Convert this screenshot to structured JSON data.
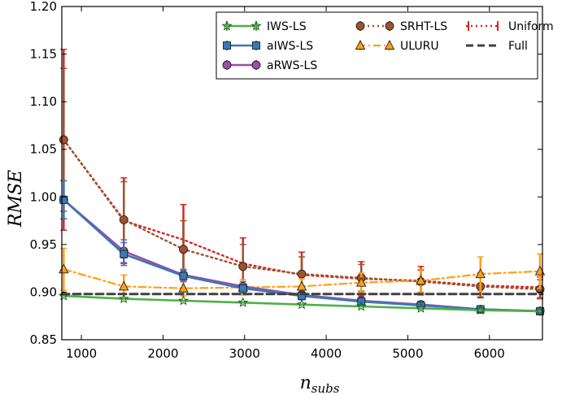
{
  "chart_data": {
    "type": "line",
    "title": "",
    "xlabel": "n_subs",
    "xlabel_main": "n",
    "xlabel_sub": "subs",
    "ylabel": "RMSE",
    "xlim": [
      760,
      6650
    ],
    "ylim": [
      0.85,
      1.2
    ],
    "xticks": [
      1000,
      2000,
      3000,
      4000,
      5000,
      6000
    ],
    "yticks": [
      0.85,
      0.9,
      0.95,
      1.0,
      1.05,
      1.1,
      1.15,
      1.2
    ],
    "x": [
      783,
      1520,
      2250,
      2980,
      3700,
      4430,
      5160,
      5890,
      6620
    ],
    "legend_position": "upper right",
    "series": [
      {
        "name": "Uniform",
        "color": "#d62728",
        "marker": "none",
        "linestyle": "dotted",
        "values": [
          1.06,
          0.975,
          0.955,
          0.93,
          0.918,
          0.914,
          0.912,
          0.907,
          0.905
        ],
        "errors": [
          0.095,
          0.045,
          0.037,
          0.027,
          0.024,
          0.018,
          0.015,
          0.013,
          0.011
        ]
      },
      {
        "name": "SRHT-LS",
        "color": "#a0522d",
        "marker": "circle",
        "linestyle": "dotted",
        "values": [
          1.06,
          0.976,
          0.945,
          0.927,
          0.919,
          0.915,
          0.911,
          0.906,
          0.903
        ],
        "errors": [
          0.075,
          0.04,
          0.03,
          0.023,
          0.018,
          0.014,
          0.012,
          0.011,
          0.01
        ]
      },
      {
        "name": "ULURU",
        "color": "#ff9f1a",
        "marker": "triangle",
        "linestyle": "dashdot",
        "values": [
          0.924,
          0.906,
          0.904,
          0.905,
          0.906,
          0.91,
          0.912,
          0.919,
          0.922
        ],
        "errors": [
          0.022,
          0.012,
          0.008,
          0.008,
          0.008,
          0.01,
          0.012,
          0.018,
          0.018
        ]
      },
      {
        "name": "aRWS-LS",
        "color": "#9b4fa5",
        "marker": "circle",
        "linestyle": "solid",
        "values": [
          0.997,
          0.943,
          0.918,
          0.906,
          0.897,
          0.891,
          0.887,
          0.882,
          0.88
        ],
        "errors": [
          0.02,
          0.012,
          0.006,
          0.005,
          0.004,
          0.003,
          0.003,
          0.002,
          0.002
        ]
      },
      {
        "name": "aIWS-LS",
        "color": "#3a78b8",
        "marker": "square",
        "linestyle": "solid",
        "values": [
          0.997,
          0.94,
          0.917,
          0.904,
          0.896,
          0.89,
          0.886,
          0.882,
          0.88
        ],
        "errors": [
          0.02,
          0.012,
          0.006,
          0.005,
          0.004,
          0.003,
          0.003,
          0.002,
          0.002
        ]
      },
      {
        "name": "IWS-LS",
        "color": "#4db04a",
        "marker": "star",
        "linestyle": "solid",
        "values": [
          0.896,
          0.893,
          0.891,
          0.889,
          0.887,
          0.885,
          0.883,
          0.881,
          0.88
        ],
        "errors": [
          0.0,
          0.0,
          0.0,
          0.0,
          0.0,
          0.0,
          0.0,
          0.0,
          0.0
        ]
      },
      {
        "name": "Full",
        "color": "#404040",
        "marker": "none",
        "linestyle": "dashed",
        "values": [
          0.898,
          0.898,
          0.898,
          0.898,
          0.898,
          0.898,
          0.898,
          0.898,
          0.898
        ],
        "errors": [
          0.0,
          0.0,
          0.0,
          0.0,
          0.0,
          0.0,
          0.0,
          0.0,
          0.0
        ]
      }
    ],
    "legend_order": [
      "IWS-LS",
      "aIWS-LS",
      "aRWS-LS",
      "SRHT-LS",
      "ULURU",
      "Uniform",
      "Full"
    ]
  }
}
